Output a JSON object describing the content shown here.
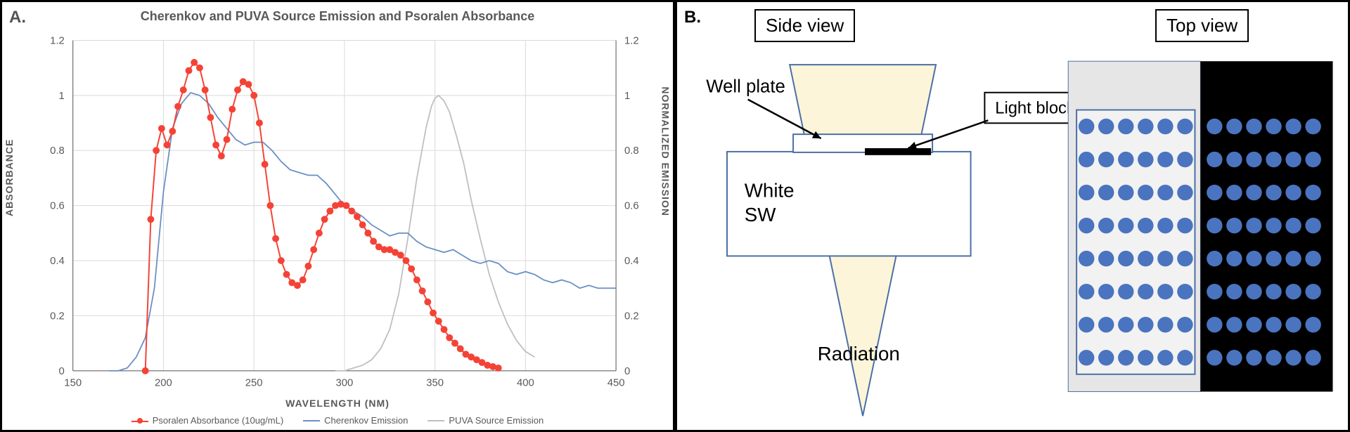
{
  "panelA": {
    "label": "A.",
    "title": "Cherenkov and PUVA Source Emission and Psoralen Absorbance",
    "xlabel": "WAVELENGTH (NM)",
    "ylabel_left": "ABSORBANCE",
    "ylabel_right": "NORMALIZED EMISSION",
    "xlim": [
      150,
      450
    ],
    "xtick_step": 50,
    "ylim_left": [
      0,
      1.2
    ],
    "ytick_left_step": 0.2,
    "ylim_right": [
      0,
      1.2
    ],
    "ytick_right_step": 0.2,
    "grid_color": "#d9d9d9",
    "axis_text_color": "#595959",
    "background_color": "#ffffff",
    "series": {
      "psoralen": {
        "label": "Psoralen Absorbance (10ug/mL)",
        "color": "#f44336",
        "line_width": 2,
        "marker": "circle",
        "marker_size": 5,
        "data": [
          [
            190,
            0.0
          ],
          [
            193,
            0.55
          ],
          [
            196,
            0.8
          ],
          [
            199,
            0.88
          ],
          [
            202,
            0.82
          ],
          [
            205,
            0.87
          ],
          [
            208,
            0.96
          ],
          [
            211,
            1.02
          ],
          [
            214,
            1.09
          ],
          [
            217,
            1.12
          ],
          [
            220,
            1.1
          ],
          [
            223,
            1.02
          ],
          [
            226,
            0.92
          ],
          [
            229,
            0.82
          ],
          [
            232,
            0.78
          ],
          [
            235,
            0.84
          ],
          [
            238,
            0.95
          ],
          [
            241,
            1.02
          ],
          [
            244,
            1.05
          ],
          [
            247,
            1.04
          ],
          [
            250,
            1.0
          ],
          [
            253,
            0.9
          ],
          [
            256,
            0.75
          ],
          [
            259,
            0.6
          ],
          [
            262,
            0.48
          ],
          [
            265,
            0.4
          ],
          [
            268,
            0.35
          ],
          [
            271,
            0.32
          ],
          [
            274,
            0.31
          ],
          [
            277,
            0.33
          ],
          [
            280,
            0.38
          ],
          [
            283,
            0.44
          ],
          [
            286,
            0.5
          ],
          [
            289,
            0.55
          ],
          [
            292,
            0.58
          ],
          [
            295,
            0.6
          ],
          [
            298,
            0.605
          ],
          [
            301,
            0.6
          ],
          [
            304,
            0.58
          ],
          [
            307,
            0.56
          ],
          [
            310,
            0.53
          ],
          [
            313,
            0.5
          ],
          [
            316,
            0.47
          ],
          [
            319,
            0.45
          ],
          [
            322,
            0.44
          ],
          [
            325,
            0.44
          ],
          [
            328,
            0.43
          ],
          [
            331,
            0.42
          ],
          [
            334,
            0.4
          ],
          [
            337,
            0.37
          ],
          [
            340,
            0.33
          ],
          [
            343,
            0.29
          ],
          [
            346,
            0.25
          ],
          [
            349,
            0.21
          ],
          [
            352,
            0.18
          ],
          [
            355,
            0.15
          ],
          [
            358,
            0.12
          ],
          [
            361,
            0.1
          ],
          [
            364,
            0.08
          ],
          [
            367,
            0.06
          ],
          [
            370,
            0.05
          ],
          [
            373,
            0.04
          ],
          [
            376,
            0.03
          ],
          [
            379,
            0.02
          ],
          [
            382,
            0.015
          ],
          [
            385,
            0.01
          ]
        ]
      },
      "cherenkov": {
        "label": "Cherenkov Emission",
        "color": "#6a8fc4",
        "line_width": 1.8,
        "data": [
          [
            170,
            0.0
          ],
          [
            175,
            0.0
          ],
          [
            180,
            0.01
          ],
          [
            185,
            0.05
          ],
          [
            190,
            0.12
          ],
          [
            195,
            0.3
          ],
          [
            200,
            0.65
          ],
          [
            205,
            0.88
          ],
          [
            210,
            0.97
          ],
          [
            215,
            1.01
          ],
          [
            220,
            1.0
          ],
          [
            225,
            0.97
          ],
          [
            230,
            0.92
          ],
          [
            235,
            0.88
          ],
          [
            240,
            0.84
          ],
          [
            245,
            0.82
          ],
          [
            250,
            0.83
          ],
          [
            255,
            0.83
          ],
          [
            260,
            0.8
          ],
          [
            265,
            0.76
          ],
          [
            270,
            0.73
          ],
          [
            275,
            0.72
          ],
          [
            280,
            0.71
          ],
          [
            285,
            0.71
          ],
          [
            290,
            0.68
          ],
          [
            295,
            0.64
          ],
          [
            300,
            0.6
          ],
          [
            305,
            0.58
          ],
          [
            310,
            0.56
          ],
          [
            315,
            0.53
          ],
          [
            320,
            0.51
          ],
          [
            325,
            0.49
          ],
          [
            330,
            0.5
          ],
          [
            335,
            0.5
          ],
          [
            340,
            0.47
          ],
          [
            345,
            0.45
          ],
          [
            350,
            0.44
          ],
          [
            355,
            0.43
          ],
          [
            360,
            0.44
          ],
          [
            365,
            0.42
          ],
          [
            370,
            0.4
          ],
          [
            375,
            0.39
          ],
          [
            380,
            0.4
          ],
          [
            385,
            0.39
          ],
          [
            390,
            0.36
          ],
          [
            395,
            0.35
          ],
          [
            400,
            0.36
          ],
          [
            405,
            0.35
          ],
          [
            410,
            0.33
          ],
          [
            415,
            0.32
          ],
          [
            420,
            0.33
          ],
          [
            425,
            0.32
          ],
          [
            430,
            0.3
          ],
          [
            435,
            0.31
          ],
          [
            440,
            0.3
          ],
          [
            445,
            0.3
          ],
          [
            450,
            0.3
          ]
        ]
      },
      "puva": {
        "label": "PUVA Source Emission",
        "color": "#bfbfbf",
        "line_width": 1.8,
        "data": [
          [
            295,
            0.0
          ],
          [
            300,
            0.0
          ],
          [
            305,
            0.01
          ],
          [
            310,
            0.02
          ],
          [
            315,
            0.04
          ],
          [
            320,
            0.08
          ],
          [
            325,
            0.15
          ],
          [
            330,
            0.28
          ],
          [
            335,
            0.48
          ],
          [
            340,
            0.7
          ],
          [
            345,
            0.88
          ],
          [
            348,
            0.96
          ],
          [
            350,
            0.99
          ],
          [
            352,
            1.0
          ],
          [
            355,
            0.98
          ],
          [
            358,
            0.94
          ],
          [
            362,
            0.85
          ],
          [
            366,
            0.75
          ],
          [
            370,
            0.62
          ],
          [
            375,
            0.48
          ],
          [
            380,
            0.35
          ],
          [
            385,
            0.25
          ],
          [
            390,
            0.17
          ],
          [
            395,
            0.11
          ],
          [
            400,
            0.07
          ],
          [
            405,
            0.05
          ]
        ]
      }
    }
  },
  "panelB": {
    "label": "B.",
    "side_view_label": "Side view",
    "top_view_label": "Top view",
    "well_plate_text": "Well plate",
    "light_block_text": "Light block",
    "white_sw_text": "White\nSW",
    "radiation_text": "Radiation",
    "beam_fill": "#fdf5d9",
    "beam_stroke": "#4a6fa5",
    "sw_stroke": "#4a6fa5",
    "light_block_color": "#000000",
    "well_color": "#4a74bf",
    "top_light_bg": "#e6e6e6",
    "top_dark_bg": "#000000",
    "plate_border": "#4a6fa5",
    "plate_fill_light": "#f2f2f2",
    "well_grid": {
      "rows": 8,
      "cols": 6
    }
  }
}
